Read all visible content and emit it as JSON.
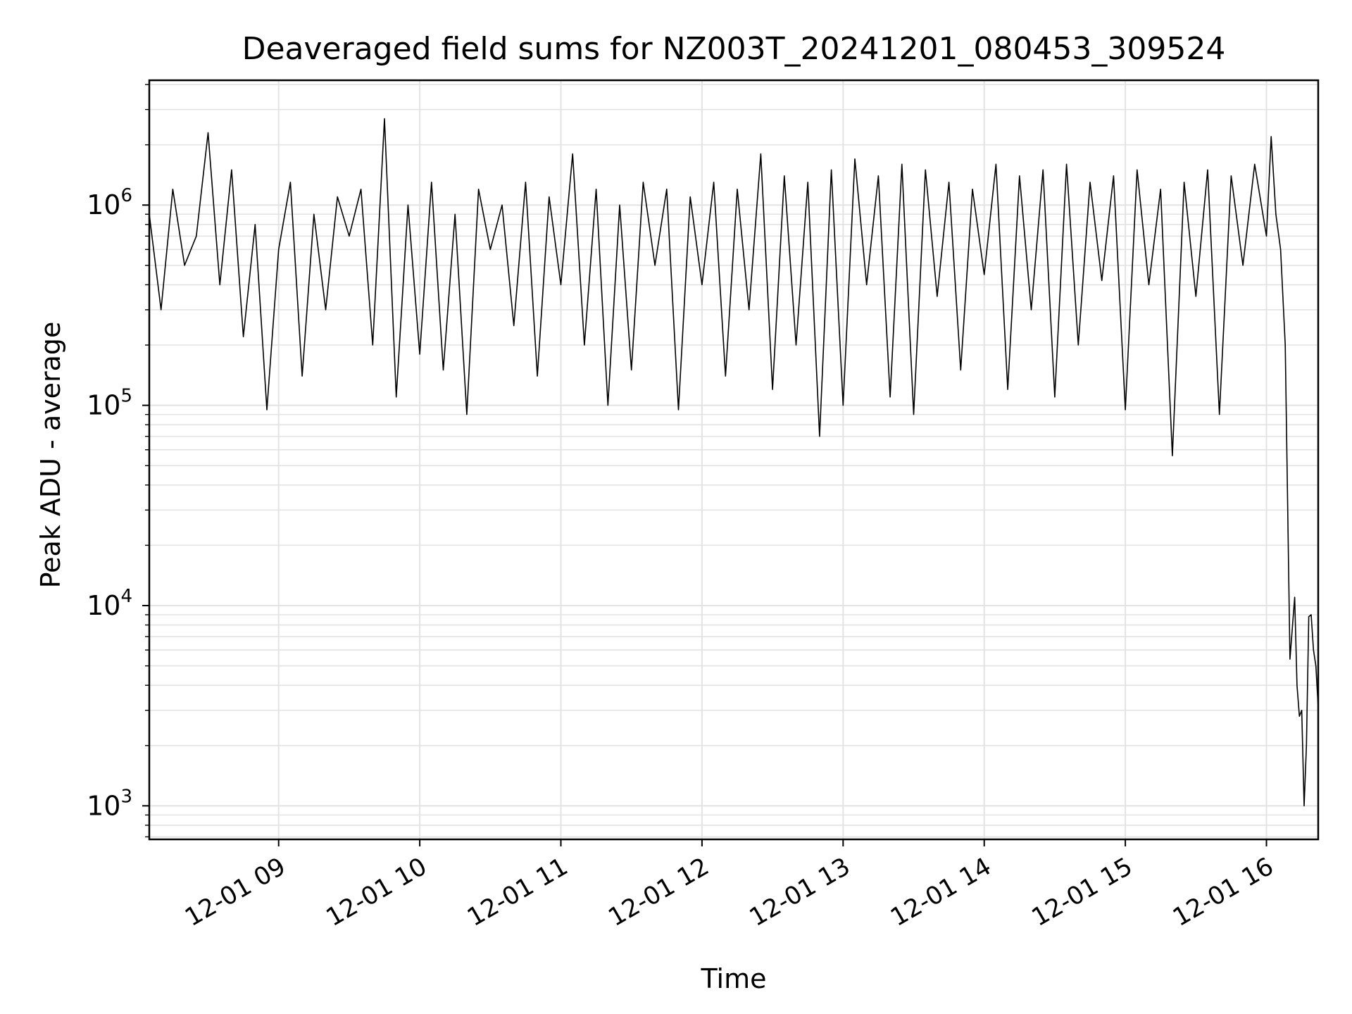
{
  "chart_data": {
    "type": "line",
    "title": "Deaveraged field sums for NZ003T_20241201_080453_309524",
    "xlabel": "Time",
    "ylabel": "Peak ADU - average",
    "yscale": "log",
    "ylim": [
      680,
      4200000
    ],
    "xlim": [
      "2024-12-01 08:05",
      "2024-12-01 16:22"
    ],
    "x_ticks": [
      "12-01 09",
      "12-01 10",
      "12-01 11",
      "12-01 12",
      "12-01 13",
      "12-01 14",
      "12-01 15",
      "12-01 16"
    ],
    "y_ticks": [
      {
        "base": "10",
        "exp": "3",
        "value": 1000
      },
      {
        "base": "10",
        "exp": "4",
        "value": 10000
      },
      {
        "base": "10",
        "exp": "5",
        "value": 100000
      },
      {
        "base": "10",
        "exp": "6",
        "value": 1000000
      }
    ],
    "grid": true,
    "line_color": "#000000",
    "series": [
      {
        "name": "",
        "x": [
          "2024-12-01 08:05",
          "2024-12-01 08:10",
          "2024-12-01 08:15",
          "2024-12-01 08:20",
          "2024-12-01 08:25",
          "2024-12-01 08:30",
          "2024-12-01 08:35",
          "2024-12-01 08:40",
          "2024-12-01 08:45",
          "2024-12-01 08:50",
          "2024-12-01 08:55",
          "2024-12-01 09:00",
          "2024-12-01 09:05",
          "2024-12-01 09:10",
          "2024-12-01 09:15",
          "2024-12-01 09:20",
          "2024-12-01 09:25",
          "2024-12-01 09:30",
          "2024-12-01 09:35",
          "2024-12-01 09:40",
          "2024-12-01 09:45",
          "2024-12-01 09:50",
          "2024-12-01 09:55",
          "2024-12-01 10:00",
          "2024-12-01 10:05",
          "2024-12-01 10:10",
          "2024-12-01 10:15",
          "2024-12-01 10:20",
          "2024-12-01 10:25",
          "2024-12-01 10:30",
          "2024-12-01 10:35",
          "2024-12-01 10:40",
          "2024-12-01 10:45",
          "2024-12-01 10:50",
          "2024-12-01 10:55",
          "2024-12-01 11:00",
          "2024-12-01 11:05",
          "2024-12-01 11:10",
          "2024-12-01 11:15",
          "2024-12-01 11:20",
          "2024-12-01 11:25",
          "2024-12-01 11:30",
          "2024-12-01 11:35",
          "2024-12-01 11:40",
          "2024-12-01 11:45",
          "2024-12-01 11:50",
          "2024-12-01 11:55",
          "2024-12-01 12:00",
          "2024-12-01 12:05",
          "2024-12-01 12:10",
          "2024-12-01 12:15",
          "2024-12-01 12:20",
          "2024-12-01 12:25",
          "2024-12-01 12:30",
          "2024-12-01 12:35",
          "2024-12-01 12:40",
          "2024-12-01 12:45",
          "2024-12-01 12:50",
          "2024-12-01 12:55",
          "2024-12-01 13:00",
          "2024-12-01 13:05",
          "2024-12-01 13:10",
          "2024-12-01 13:15",
          "2024-12-01 13:20",
          "2024-12-01 13:25",
          "2024-12-01 13:30",
          "2024-12-01 13:35",
          "2024-12-01 13:40",
          "2024-12-01 13:45",
          "2024-12-01 13:50",
          "2024-12-01 13:55",
          "2024-12-01 14:00",
          "2024-12-01 14:05",
          "2024-12-01 14:10",
          "2024-12-01 14:15",
          "2024-12-01 14:20",
          "2024-12-01 14:25",
          "2024-12-01 14:30",
          "2024-12-01 14:35",
          "2024-12-01 14:40",
          "2024-12-01 14:45",
          "2024-12-01 14:50",
          "2024-12-01 14:55",
          "2024-12-01 15:00",
          "2024-12-01 15:05",
          "2024-12-01 15:10",
          "2024-12-01 15:15",
          "2024-12-01 15:20",
          "2024-12-01 15:25",
          "2024-12-01 15:30",
          "2024-12-01 15:35",
          "2024-12-01 15:40",
          "2024-12-01 15:45",
          "2024-12-01 15:50",
          "2024-12-01 15:55",
          "2024-12-01 16:00",
          "2024-12-01 16:02",
          "2024-12-01 16:04",
          "2024-12-01 16:06",
          "2024-12-01 16:08",
          "2024-12-01 16:10",
          "2024-12-01 16:12",
          "2024-12-01 16:13",
          "2024-12-01 16:14",
          "2024-12-01 16:15",
          "2024-12-01 16:16",
          "2024-12-01 16:17",
          "2024-12-01 16:18",
          "2024-12-01 16:19",
          "2024-12-01 16:20",
          "2024-12-01 16:21",
          "2024-12-01 16:22"
        ],
        "y": [
          900000,
          300000,
          1200000,
          500000,
          700000,
          2300000,
          400000,
          1500000,
          220000,
          800000,
          95000,
          600000,
          1300000,
          140000,
          900000,
          300000,
          1100000,
          700000,
          1200000,
          200000,
          2700000,
          110000,
          1000000,
          180000,
          1300000,
          150000,
          900000,
          90000,
          1200000,
          600000,
          1000000,
          250000,
          1300000,
          140000,
          1100000,
          400000,
          1800000,
          200000,
          1200000,
          100000,
          1000000,
          150000,
          1300000,
          500000,
          1200000,
          95000,
          1100000,
          400000,
          1300000,
          140000,
          1200000,
          300000,
          1800000,
          120000,
          1400000,
          200000,
          1300000,
          70000,
          1500000,
          100000,
          1700000,
          400000,
          1400000,
          110000,
          1600000,
          90000,
          1500000,
          350000,
          1300000,
          150000,
          1200000,
          450000,
          1600000,
          120000,
          1400000,
          300000,
          1500000,
          110000,
          1600000,
          200000,
          1300000,
          420000,
          1400000,
          95000,
          1500000,
          400000,
          1200000,
          56000,
          1300000,
          350000,
          1500000,
          90000,
          1400000,
          500000,
          1600000,
          700000,
          2200000,
          900000,
          600000,
          200000,
          5400,
          11000,
          4000,
          2800,
          3000,
          1000,
          2000,
          8800,
          9000,
          6000,
          5000,
          3100
        ]
      }
    ]
  }
}
